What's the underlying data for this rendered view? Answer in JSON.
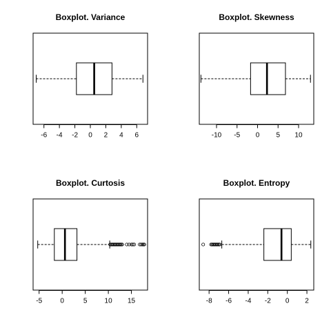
{
  "chart_data": [
    {
      "type": "boxplot",
      "orientation": "horizontal",
      "title": "Boxplot. Variance",
      "xlim": [
        -7.4,
        7.4
      ],
      "ticks": [
        -6,
        -4,
        -2,
        0,
        2,
        4,
        6
      ],
      "tick_labels": [
        "-6",
        "-4",
        "-2",
        "0",
        "2",
        "4",
        "6"
      ],
      "stats": {
        "whisker_low": -7.0,
        "q1": -1.8,
        "median": 0.5,
        "q3": 2.8,
        "whisker_high": 6.8
      },
      "outliers": []
    },
    {
      "type": "boxplot",
      "orientation": "horizontal",
      "title": "Boxplot. Skewness",
      "xlim": [
        -14.2,
        13.7
      ],
      "ticks": [
        -10,
        -5,
        0,
        5,
        10
      ],
      "tick_labels": [
        "-10",
        "-5",
        "0",
        "5",
        "10"
      ],
      "stats": {
        "whisker_low": -13.8,
        "q1": -1.7,
        "median": 2.3,
        "q3": 6.8,
        "whisker_high": 12.9
      },
      "outliers": []
    },
    {
      "type": "boxplot",
      "orientation": "horizontal",
      "title": "Boxplot. Curtosis",
      "xlim": [
        -6.3,
        18.5
      ],
      "ticks": [
        -5,
        0,
        5,
        10,
        15
      ],
      "tick_labels": [
        "-5",
        "0",
        "5",
        "10",
        "15"
      ],
      "stats": {
        "whisker_low": -5.3,
        "q1": -1.7,
        "median": 0.6,
        "q3": 3.2,
        "whisker_high": 10.3
      },
      "outliers": [
        10.4,
        10.6,
        10.8,
        11.0,
        11.2,
        11.4,
        11.6,
        11.8,
        12.0,
        12.2,
        12.4,
        12.6,
        12.8,
        13.0,
        14.0,
        14.5,
        15.0,
        15.3,
        15.6,
        16.8,
        17.1,
        17.4,
        17.6,
        17.8
      ]
    },
    {
      "type": "boxplot",
      "orientation": "horizontal",
      "title": "Boxplot. Entropy",
      "xlim": [
        -9.0,
        2.7
      ],
      "ticks": [
        -8,
        -6,
        -4,
        -2,
        0,
        2
      ],
      "tick_labels": [
        "-8",
        "-6",
        "-4",
        "-2",
        "0",
        "2"
      ],
      "stats": {
        "whisker_low": -6.7,
        "q1": -2.4,
        "median": -0.6,
        "q3": 0.4,
        "whisker_high": 2.4
      },
      "outliers": [
        -8.6,
        -7.8,
        -7.7,
        -7.6,
        -7.5,
        -7.4,
        -7.3,
        -7.2,
        -7.1,
        -7.0,
        -6.9
      ]
    }
  ]
}
